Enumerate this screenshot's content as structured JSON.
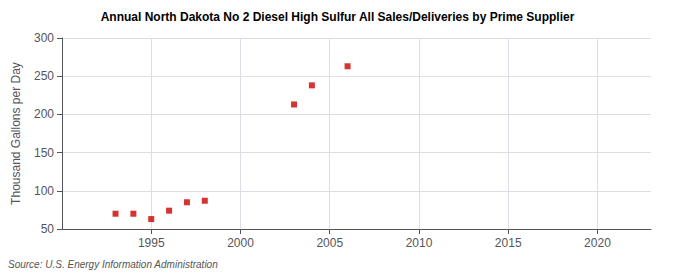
{
  "chart_data": {
    "type": "scatter",
    "title": "Annual North Dakota No 2 Diesel High Sulfur All Sales/Deliveries by Prime Supplier",
    "ylabel": "Thousand Gallons per Day",
    "annotation": "Source: U.S. Energy Information Administration",
    "x": [
      1993,
      1994,
      1995,
      1996,
      1997,
      1998,
      2003,
      2004,
      2006
    ],
    "values": [
      70,
      70,
      63,
      74,
      85,
      87,
      213,
      238,
      263
    ],
    "color": "#cc0000",
    "marker": "square",
    "xlim": [
      1990,
      2023
    ],
    "ylim": [
      50,
      300
    ],
    "xticks": [
      1995,
      2000,
      2005,
      2010,
      2015,
      2020
    ],
    "yticks": [
      50,
      100,
      150,
      200,
      250,
      300
    ],
    "grid": true
  }
}
